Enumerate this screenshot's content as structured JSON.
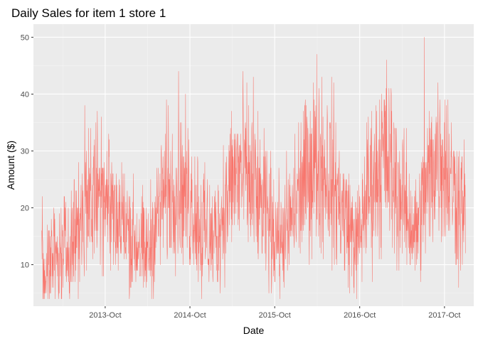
{
  "chart_data": {
    "type": "line",
    "title": "Daily Sales for item 1 store 1",
    "xlabel": "Date",
    "ylabel": "Amount ($)",
    "x_range": [
      "2013-01-01",
      "2017-12-31"
    ],
    "xlim": [
      "2012-11-26",
      "2018-02-04"
    ],
    "ylim": [
      2.7,
      52.3
    ],
    "x_ticks": [
      {
        "date": "2013-10-01",
        "label": "2013-Oct"
      },
      {
        "date": "2014-10-01",
        "label": "2014-Oct"
      },
      {
        "date": "2015-10-01",
        "label": "2015-Oct"
      },
      {
        "date": "2016-10-01",
        "label": "2016-Oct"
      },
      {
        "date": "2017-10-01",
        "label": "2017-Oct"
      }
    ],
    "y_ticks": [
      10,
      20,
      30,
      40,
      50
    ],
    "grid": true,
    "legend": "none",
    "series": [
      {
        "values": [
          12,
          13,
          9,
          7,
          10,
          6,
          11,
          14,
          12,
          13,
          11,
          8,
          10,
          12,
          9,
          13,
          14,
          11,
          9,
          12,
          10,
          13,
          8,
          11,
          12,
          10,
          14,
          13,
          9,
          11,
          15,
          12,
          13,
          10,
          14,
          16,
          12,
          11,
          15,
          13,
          17,
          14,
          12,
          18,
          15,
          13,
          19,
          16,
          20,
          17,
          14,
          21,
          18,
          16,
          22,
          19,
          17,
          20,
          23,
          18,
          21,
          24,
          19,
          22,
          20,
          25,
          21,
          18,
          23,
          26,
          20,
          22,
          24,
          19,
          27,
          21,
          23,
          25,
          20,
          38,
          22,
          24,
          21,
          26,
          23,
          19,
          25,
          22,
          20,
          24,
          21,
          18,
          23,
          20,
          22,
          19,
          17,
          21,
          18,
          20,
          16,
          19,
          22,
          17,
          18,
          15,
          20,
          17,
          19,
          14,
          18,
          16,
          13,
          17,
          19,
          15,
          14,
          18,
          16,
          12,
          15,
          17,
          13,
          16,
          14,
          11,
          15,
          12,
          14,
          16,
          13,
          10,
          15,
          12,
          14,
          11,
          13,
          9,
          12,
          15,
          11,
          13,
          10,
          14,
          12,
          16,
          13,
          15,
          17,
          14,
          18,
          16,
          19,
          17,
          20,
          18,
          21,
          19,
          22,
          20,
          23,
          21,
          24,
          22,
          20,
          25,
          23,
          21,
          26,
          22,
          24,
          20,
          27,
          23,
          21,
          25,
          22,
          28,
          24,
          21,
          26,
          23,
          29,
          22,
          25,
          21,
          27,
          24,
          22,
          20,
          26,
          23,
          21,
          19,
          25,
          22,
          20,
          18,
          24,
          21,
          19,
          23,
          17,
          20,
          22,
          18,
          16,
          21,
          19,
          17,
          15,
          20,
          18,
          16,
          14,
          19,
          17,
          15,
          13,
          18,
          16,
          14,
          12,
          17,
          15,
          13,
          16,
          14,
          12,
          15,
          18,
          14,
          16,
          13,
          17,
          15,
          19,
          16,
          18,
          20,
          17,
          22,
          19,
          21,
          18,
          24,
          20,
          23,
          21,
          25,
          22,
          24,
          27,
          23,
          26,
          22,
          28,
          25,
          23,
          29,
          26,
          24,
          27,
          25,
          30,
          26,
          24,
          28,
          25,
          27,
          23,
          29,
          26,
          24,
          22,
          27,
          25,
          23,
          21,
          26,
          24,
          22,
          20,
          25,
          23,
          21,
          19,
          24,
          22,
          20,
          18,
          23,
          21,
          19,
          17,
          22,
          20,
          18,
          16,
          21,
          19,
          17,
          15,
          20,
          18,
          16,
          14,
          19,
          17,
          15,
          13,
          18,
          16,
          14,
          17,
          15,
          13,
          16,
          14,
          12,
          15,
          17,
          14,
          16,
          13,
          18,
          15,
          17,
          14,
          19,
          16,
          20,
          18,
          17,
          21,
          19,
          22,
          20,
          18,
          23,
          21,
          24,
          22,
          20,
          25,
          23,
          26,
          24,
          22,
          27,
          25,
          23,
          28,
          26,
          24,
          29,
          27,
          25,
          30,
          28,
          26,
          31,
          27,
          29,
          25,
          32,
          28,
          26,
          30,
          27,
          29,
          25,
          31,
          28,
          26,
          24,
          30,
          27,
          25,
          29,
          26,
          24,
          28,
          25,
          23,
          27,
          24,
          22,
          26,
          23,
          25,
          21,
          24,
          22,
          20,
          23,
          21,
          19,
          22,
          20,
          18,
          21,
          19,
          17,
          20,
          18,
          16,
          19,
          17,
          15,
          18,
          16,
          14,
          17,
          15,
          13,
          16,
          14,
          12,
          15,
          13,
          17,
          14,
          16,
          15,
          18,
          17,
          20,
          19,
          22,
          21,
          20,
          23,
          22,
          24,
          23,
          22,
          25,
          24,
          23,
          26,
          25,
          24,
          27,
          26,
          25,
          28,
          27,
          26,
          29,
          28,
          27,
          30,
          29,
          28,
          31,
          29,
          27,
          30,
          28,
          26,
          29,
          27,
          25,
          28,
          26,
          24,
          27,
          25,
          23,
          26,
          24,
          22,
          25,
          23,
          21,
          24,
          22,
          20,
          23,
          21,
          19,
          22,
          20,
          18,
          21,
          19,
          17,
          20,
          18,
          16,
          19,
          17,
          15,
          18,
          16,
          14,
          17,
          15,
          19,
          16,
          18,
          17,
          20,
          19,
          21,
          20,
          22,
          21,
          23,
          22,
          24,
          23,
          25,
          24,
          26,
          25,
          27,
          26,
          28,
          27,
          29,
          28,
          30,
          29,
          31,
          30,
          28,
          32,
          30,
          28,
          31,
          29,
          27,
          30,
          28,
          26,
          29,
          27,
          25,
          28,
          26,
          24,
          27,
          25,
          23,
          26,
          24,
          22,
          25,
          23,
          21,
          24,
          22,
          20,
          23,
          21,
          19,
          22,
          20,
          18,
          21,
          19,
          17
        ],
        "color": "#f8766d"
      }
    ],
    "notable_points": [
      {
        "date": "2013-07-05",
        "value": 38
      },
      {
        "date": "2014-11-20",
        "value": 4
      },
      {
        "date": "2015-07-01",
        "value": 43
      },
      {
        "date": "2017-07-06",
        "value": 50
      },
      {
        "date": "2017-12-01",
        "value": 6
      }
    ],
    "colors": {
      "panel_background": "#ebebeb",
      "grid_major": "#ffffff",
      "grid_minor": "#f5f5f5",
      "tick_mark": "#333333"
    }
  }
}
